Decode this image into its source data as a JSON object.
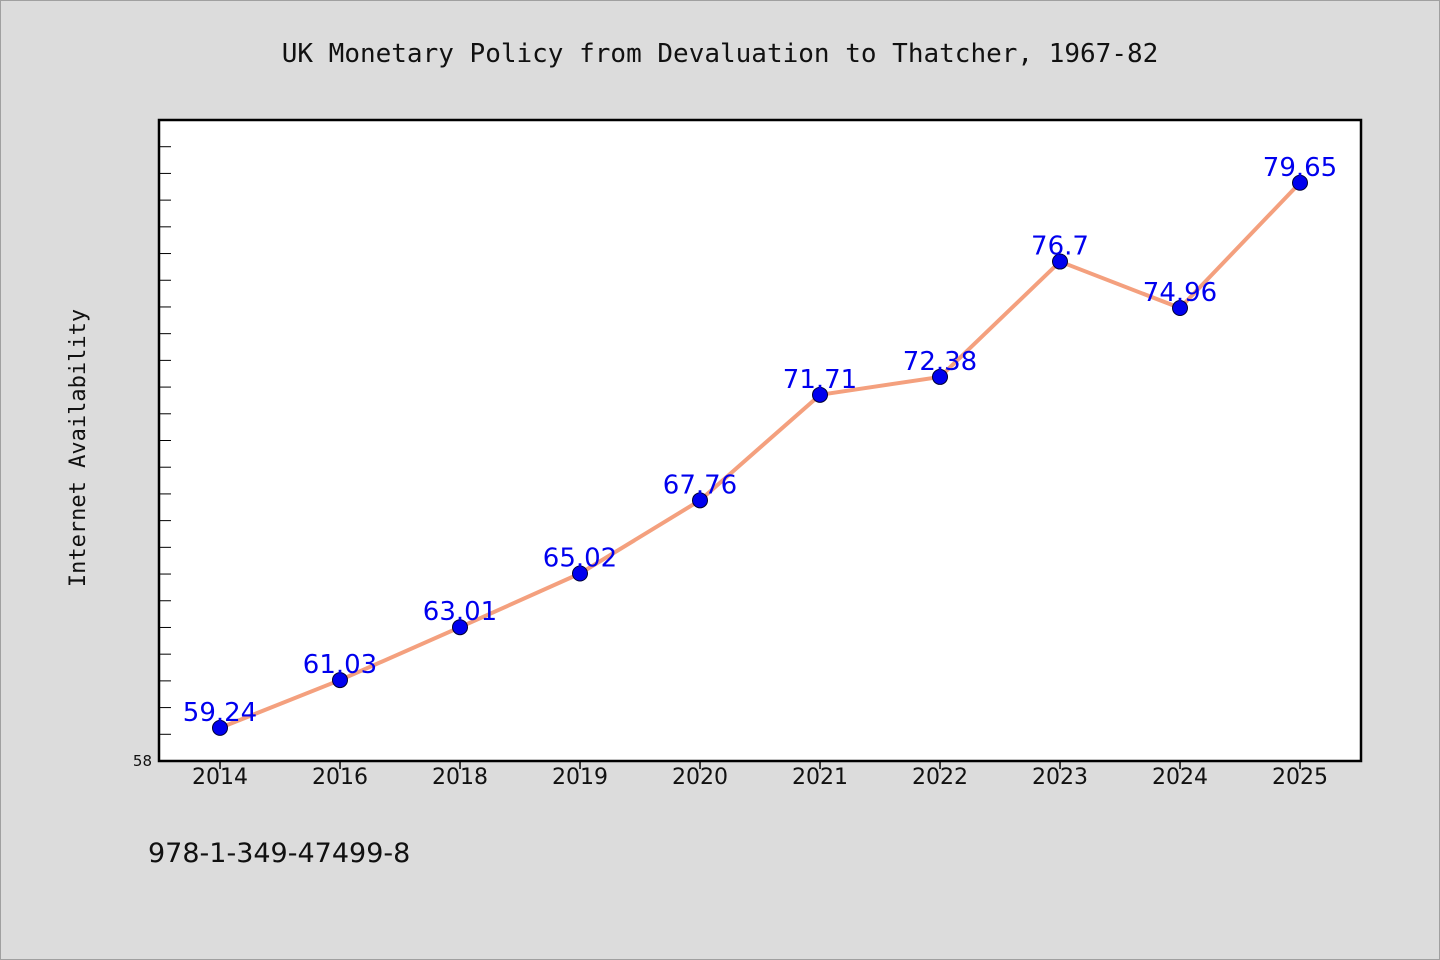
{
  "chart_data": {
    "type": "line",
    "title": "UK Monetary Policy from Devaluation to Thatcher, 1967-82",
    "xlabel": "",
    "ylabel": "Internet Availability",
    "categories": [
      "2014",
      "2016",
      "2018",
      "2019",
      "2020",
      "2021",
      "2022",
      "2023",
      "2024",
      "2025"
    ],
    "series": [
      {
        "values": [
          59.24,
          61.03,
          63.01,
          65.02,
          67.76,
          71.71,
          72.38,
          76.7,
          74.96,
          79.65
        ],
        "line_color": "#f4a07e",
        "marker_color": "#0000ee"
      }
    ],
    "data_labels": [
      "59.24",
      "61.03",
      "63.01",
      "65.02",
      "67.76",
      "71.71",
      "72.38",
      "76.7",
      "74.96",
      "79.65"
    ],
    "ylim": [
      58,
      82
    ],
    "y_tick_label": "58",
    "grid": false,
    "legend": "none"
  },
  "footer": {
    "isbn": "978-1-349-47499-8"
  }
}
